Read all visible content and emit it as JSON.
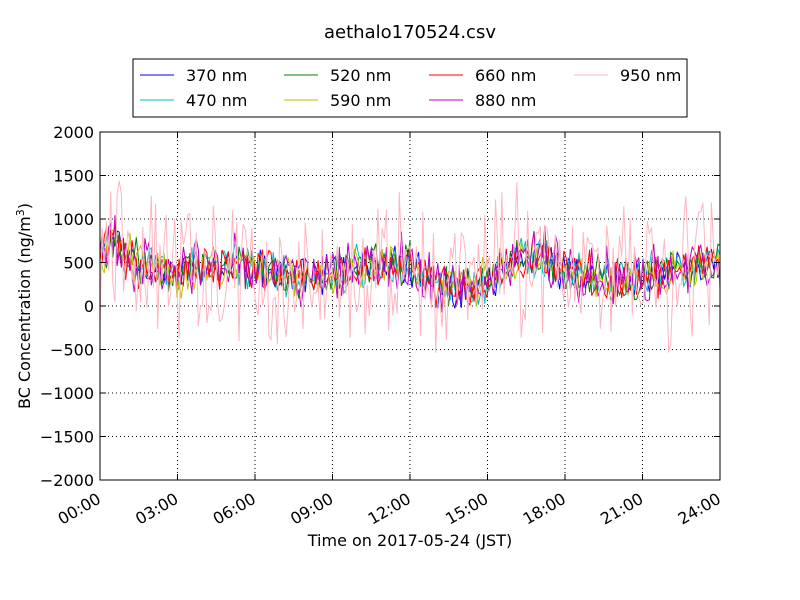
{
  "chart_data": {
    "type": "line",
    "title": "aethalo170524.csv",
    "xlabel": "Time on 2017-05-24 (JST)",
    "ylabel_main": "BC Concentration (ng/m",
    "ylabel_sup": "3",
    "ylabel_close": ")",
    "xlim_hours": [
      0,
      24
    ],
    "xticks_hours": [
      0,
      3,
      6,
      9,
      12,
      15,
      18,
      21,
      24
    ],
    "xtick_labels": [
      "00:00",
      "03:00",
      "06:00",
      "09:00",
      "12:00",
      "15:00",
      "18:00",
      "21:00",
      "24:00"
    ],
    "ylim": [
      -2000,
      2000
    ],
    "yticks": [
      -2000,
      -1500,
      -1000,
      -500,
      0,
      500,
      1000,
      1500,
      2000
    ],
    "ytick_labels": [
      "−2000",
      "−1500",
      "−1000",
      "−500",
      "0",
      "500",
      "1000",
      "1500",
      "2000"
    ],
    "grid": true,
    "legend_placement": "top, above plot, 4 columns",
    "series": [
      {
        "name": "370 nm",
        "color": "#0000ff",
        "amp": 280
      },
      {
        "name": "470 nm",
        "color": "#00bfbf",
        "amp": 300
      },
      {
        "name": "520 nm",
        "color": "#008000",
        "amp": 320
      },
      {
        "name": "590 nm",
        "color": "#bfbf00",
        "amp": 330
      },
      {
        "name": "660 nm",
        "color": "#ff0000",
        "amp": 340
      },
      {
        "name": "880 nm",
        "color": "#bf00bf",
        "amp": 420
      },
      {
        "name": "950 nm",
        "color": "#ffb6c1",
        "amp": 1000
      }
    ],
    "baseline": [
      [
        0.0,
        500
      ],
      [
        0.5,
        800
      ],
      [
        1.0,
        550
      ],
      [
        2.0,
        450
      ],
      [
        3.0,
        350
      ],
      [
        4.0,
        450
      ],
      [
        5.0,
        500
      ],
      [
        6.0,
        450
      ],
      [
        7.0,
        350
      ],
      [
        8.0,
        300
      ],
      [
        9.0,
        400
      ],
      [
        10.0,
        450
      ],
      [
        11.0,
        500
      ],
      [
        12.0,
        450
      ],
      [
        13.0,
        250
      ],
      [
        14.0,
        200
      ],
      [
        15.0,
        300
      ],
      [
        16.0,
        550
      ],
      [
        17.0,
        600
      ],
      [
        18.0,
        400
      ],
      [
        19.0,
        350
      ],
      [
        20.0,
        300
      ],
      [
        21.0,
        350
      ],
      [
        22.0,
        400
      ],
      [
        23.0,
        450
      ],
      [
        24.0,
        500
      ]
    ]
  }
}
